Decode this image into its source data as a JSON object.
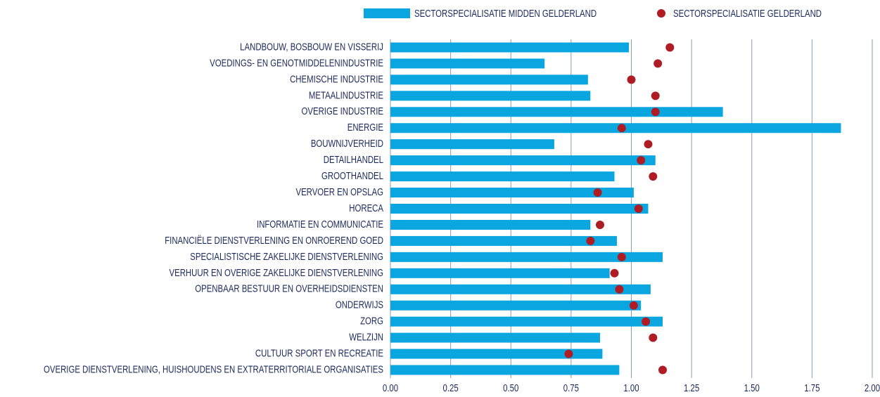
{
  "chart_data": {
    "type": "bar",
    "orientation": "horizontal",
    "categories": [
      "LANDBOUW, BOSBOUW EN VISSERIJ",
      "VOEDINGS- EN GENOTMIDDELENINDUSTRIE",
      "CHEMISCHE INDUSTRIE",
      "METAALINDUSTRIE",
      "OVERIGE INDUSTRIE",
      "ENERGIE",
      "BOUWNIJVERHEID",
      "DETAILHANDEL",
      "GROOTHANDEL",
      "VERVOER EN OPSLAG",
      "HORECA",
      "INFORMATIE EN COMMUNICATIE",
      "FINANCIËLE DIENSTVERLENING EN ONROEREND GOED",
      "SPECIALISTISCHE ZAKELIJKE DIENSTVERLENING",
      "VERHUUR EN OVERIGE ZAKELIJKE DIENSTVERLENING",
      "OPENBAAR BESTUUR EN OVERHEIDSDIENSTEN",
      "ONDERWIJS",
      "ZORG",
      "WELZIJN",
      "CULTUUR SPORT EN RECREATIE",
      "OVERIGE DIENSTVERLENING, HUISHOUDENS EN EXTRATERRITORIALE ORGANISATIES"
    ],
    "series": [
      {
        "name": "SECTORSPECIALISATIE MIDDEN GELDERLAND",
        "color": "#0aa6e0",
        "mark": "bar",
        "values": [
          0.99,
          0.64,
          0.82,
          0.83,
          1.38,
          1.87,
          0.68,
          1.1,
          0.93,
          1.01,
          1.07,
          0.83,
          0.94,
          1.13,
          0.91,
          1.08,
          1.04,
          1.13,
          0.87,
          0.88,
          0.95
        ]
      },
      {
        "name": "SECTORSPECIALISATIE GELDERLAND",
        "color": "#b01c24",
        "mark": "dot",
        "values": [
          1.16,
          1.11,
          1.0,
          1.1,
          1.1,
          0.96,
          1.07,
          1.04,
          1.09,
          0.86,
          1.03,
          0.87,
          0.83,
          0.96,
          0.93,
          0.95,
          1.01,
          1.06,
          1.09,
          0.74,
          1.13
        ]
      }
    ],
    "xlim": [
      0,
      2
    ],
    "xticks": [
      {
        "value": 0,
        "label": "0.00"
      },
      {
        "value": 0.25,
        "label": "0.25"
      },
      {
        "value": 0.5,
        "label": "0.50"
      },
      {
        "value": 0.75,
        "label": "0.75"
      },
      {
        "value": 1,
        "label": "1.00"
      },
      {
        "value": 1.25,
        "label": "1.25"
      },
      {
        "value": 1.5,
        "label": "1.50"
      },
      {
        "value": 1.75,
        "label": "1.75"
      },
      {
        "value": 2,
        "label": "2.00"
      }
    ],
    "grid": true,
    "legend": "top"
  }
}
